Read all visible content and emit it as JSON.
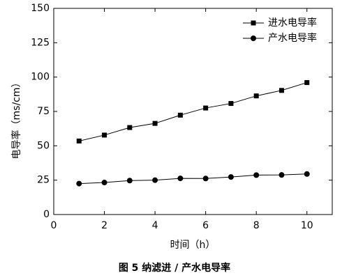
{
  "chart_data": {
    "type": "line",
    "caption": "图 5  纳滤进 / 产水电导率",
    "x_label": "时间（h）",
    "y_label": "电导率（ms/cm）",
    "x": [
      1,
      2,
      3,
      4,
      5,
      6,
      7,
      8,
      9,
      10
    ],
    "series": [
      {
        "name": "进水电导率",
        "color": "#000000",
        "marker": "square",
        "values": [
          53.5,
          57.8,
          63.3,
          66.3,
          72.3,
          77.5,
          80.8,
          86.3,
          90.3,
          96
        ]
      },
      {
        "name": "产水电导率",
        "color": "#000000",
        "marker": "circle",
        "values": [
          22.5,
          23.3,
          24.7,
          25,
          26.3,
          26.2,
          27.3,
          28.7,
          28.8,
          29.5
        ]
      }
    ],
    "xlim": [
      0,
      11
    ],
    "xticks": [
      0,
      2,
      4,
      6,
      8,
      10
    ],
    "ylim": [
      0,
      150
    ],
    "yticks": [
      0,
      25,
      50,
      75,
      100,
      125,
      150
    ],
    "legend": "upper right"
  }
}
